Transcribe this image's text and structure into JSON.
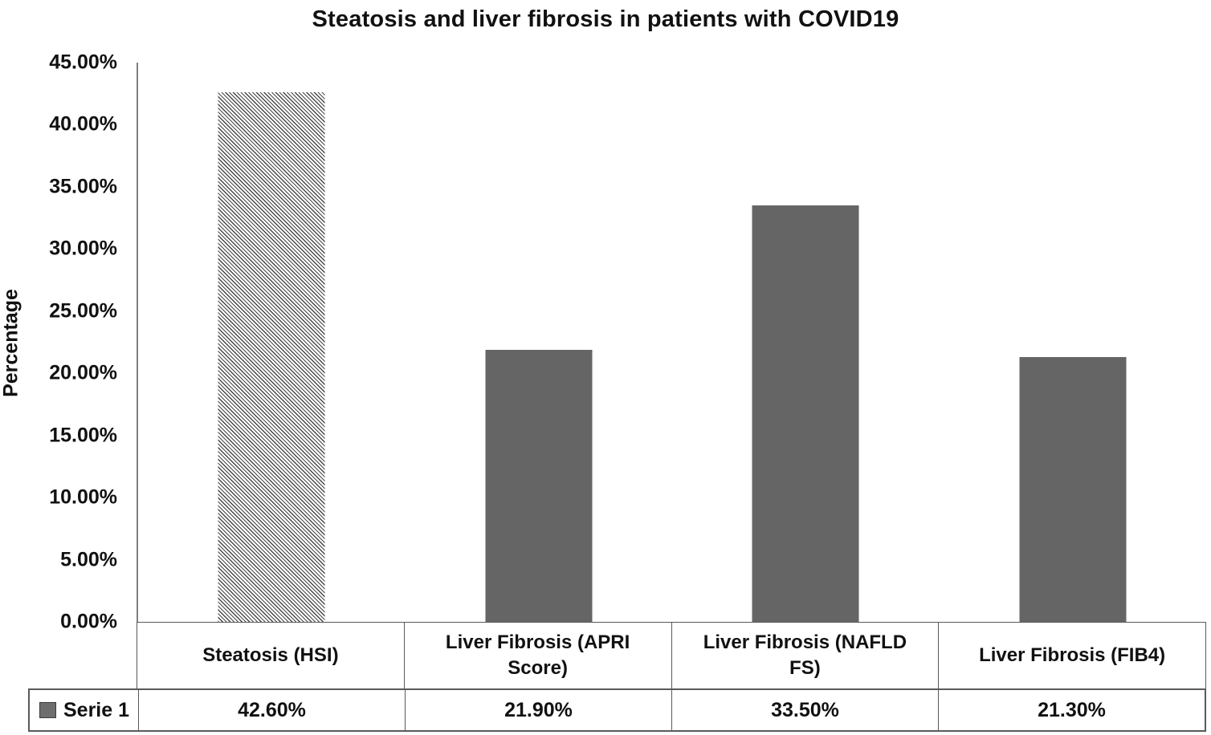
{
  "chart_data": {
    "type": "bar",
    "title": "Steatosis and liver fibrosis in patients with COVID19",
    "ylabel": "Percentage",
    "xlabel": "",
    "ylim": [
      0,
      45
    ],
    "ytick_step": 5,
    "ytick_labels": [
      "0.00%",
      "5.00%",
      "10.00%",
      "15.00%",
      "20.00%",
      "25.00%",
      "30.00%",
      "35.00%",
      "40.00%",
      "45.00%"
    ],
    "grid": false,
    "legend_position": "bottom-table",
    "categories": [
      "Steatosis (HSI)",
      "Liver Fibrosis (APRI Score)",
      "Liver Fibrosis (NAFLD FS)",
      "Liver Fibrosis (FIB4)"
    ],
    "series": [
      {
        "name": "Serie 1",
        "values": [
          42.6,
          21.9,
          33.5,
          21.3
        ],
        "value_labels": [
          "42.60%",
          "21.90%",
          "33.50%",
          "21.30%"
        ]
      }
    ],
    "bar_styles": [
      "hatched-diagonal",
      "solid",
      "solid",
      "solid"
    ],
    "colors": {
      "solid_bar": "#656565",
      "hatch_line": "#474747",
      "hatch_background": "#ffffff",
      "axis_line": "#808080",
      "table_border": "#595959",
      "text": "#111111",
      "background": "#ffffff"
    }
  }
}
